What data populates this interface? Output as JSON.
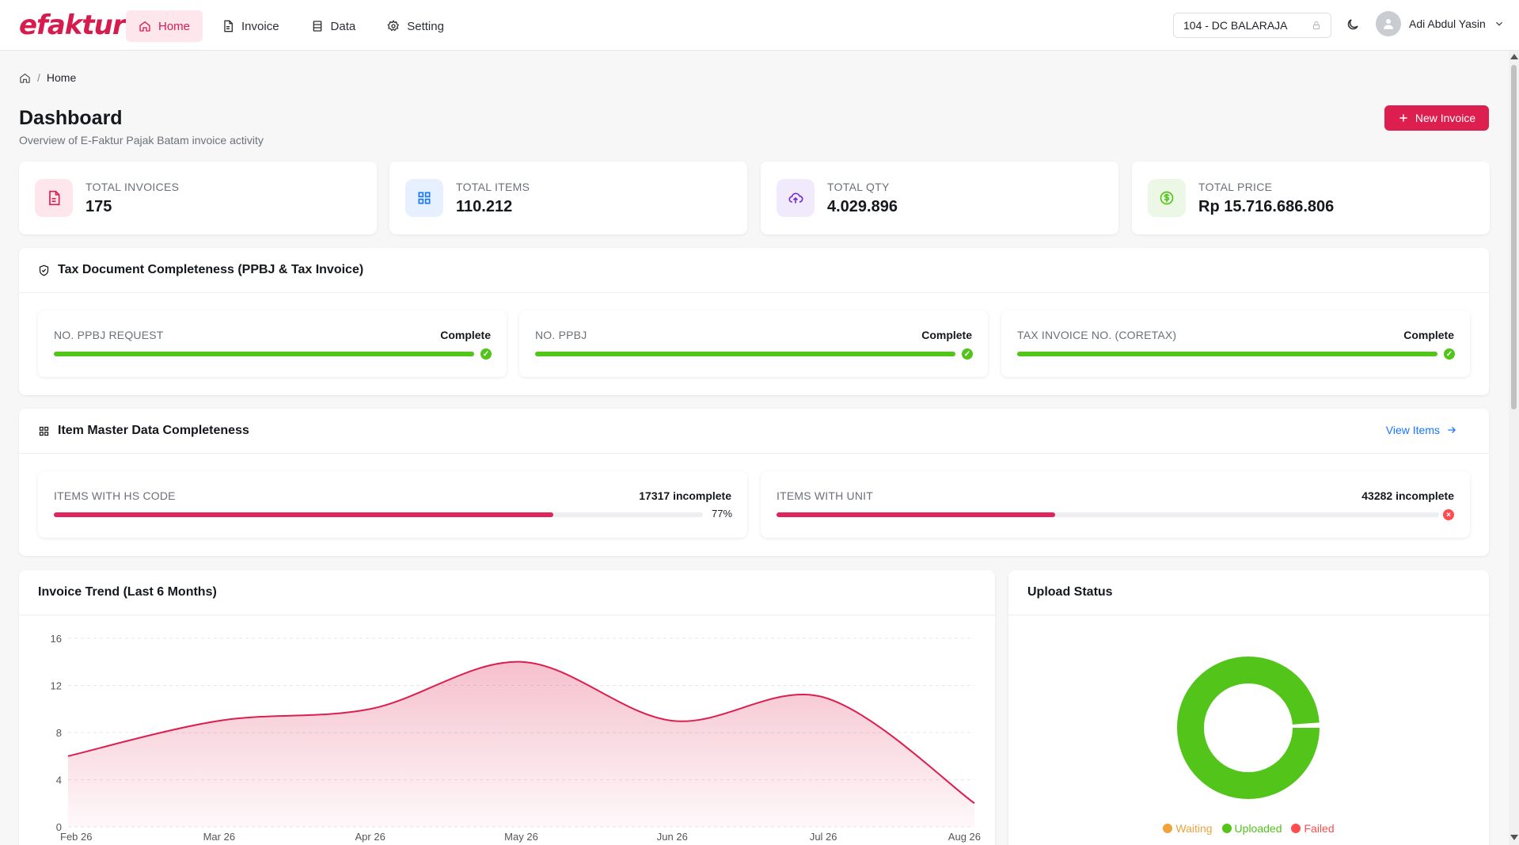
{
  "brand": {
    "logo": "efaktur",
    "accent": "#dc1f4e"
  },
  "nav": [
    {
      "label": "Home",
      "icon": "home-icon",
      "active": true
    },
    {
      "label": "Invoice",
      "icon": "document-icon",
      "active": false
    },
    {
      "label": "Data",
      "icon": "database-icon",
      "active": false
    },
    {
      "label": "Setting",
      "icon": "gear-icon",
      "active": false
    }
  ],
  "header": {
    "store": "104 - DC BALARAJA",
    "user_name": "Adi Abdul Yasin"
  },
  "breadcrumb": {
    "current": "Home"
  },
  "page": {
    "title": "Dashboard",
    "subtitle": "Overview of E-Faktur Pajak Batam invoice activity",
    "new_invoice_label": "New Invoice"
  },
  "stats": [
    {
      "label": "TOTAL INVOICES",
      "value": "175",
      "icon": "file-text-icon",
      "color": "#dc1f4e"
    },
    {
      "label": "TOTAL ITEMS",
      "value": "110.212",
      "icon": "grid-icon",
      "color": "#1677ff"
    },
    {
      "label": "TOTAL QTY",
      "value": "4.029.896",
      "icon": "cloud-upload-icon",
      "color": "#722ed1"
    },
    {
      "label": "TOTAL PRICE",
      "value": "Rp 15.716.686.806",
      "icon": "dollar-circle-icon",
      "color": "#52c41a"
    }
  ],
  "tax_doc": {
    "title": "Tax Document Completeness (PPBJ & Tax Invoice)",
    "items": [
      {
        "label": "NO. PPBJ REQUEST",
        "status": "Complete",
        "progress": 1.0
      },
      {
        "label": "NO. PPBJ",
        "status": "Complete",
        "progress": 1.0
      },
      {
        "label": "TAX INVOICE NO. (CORETAX)",
        "status": "Complete",
        "progress": 1.0
      }
    ]
  },
  "item_master": {
    "title": "Item Master Data Completeness",
    "view_link": "View Items",
    "items": [
      {
        "label": "ITEMS WITH HS CODE",
        "status": "17317 incomplete",
        "progress": 0.77,
        "percent": "77%"
      },
      {
        "label": "ITEMS WITH UNIT",
        "status": "43282 incomplete",
        "progress": 0.42
      }
    ]
  },
  "trend": {
    "title": "Invoice Trend (Last 6 Months)",
    "chart_data": {
      "type": "area",
      "x": [
        "Feb 26",
        "Mar 26",
        "Apr 26",
        "May 26",
        "Jun 26",
        "Jul 26",
        "Aug 26"
      ],
      "values": [
        6,
        9,
        10,
        14,
        9,
        11,
        2
      ],
      "yticks": [
        0,
        4,
        8,
        12,
        16
      ],
      "ylim": [
        0,
        16
      ],
      "color": "#dc1f4e"
    }
  },
  "upload": {
    "title": "Upload Status",
    "chart_data": {
      "type": "pie",
      "categories": [
        "Waiting",
        "Uploaded",
        "Failed"
      ],
      "values": [
        0,
        174,
        1
      ],
      "colors": [
        "#f0a23b",
        "#52c41a",
        "#ff4d4f"
      ]
    },
    "legend": [
      {
        "label": "Waiting",
        "color": "#f0a23b"
      },
      {
        "label": "Uploaded",
        "color": "#52c41a"
      },
      {
        "label": "Failed",
        "color": "#ff4d4f"
      }
    ]
  }
}
